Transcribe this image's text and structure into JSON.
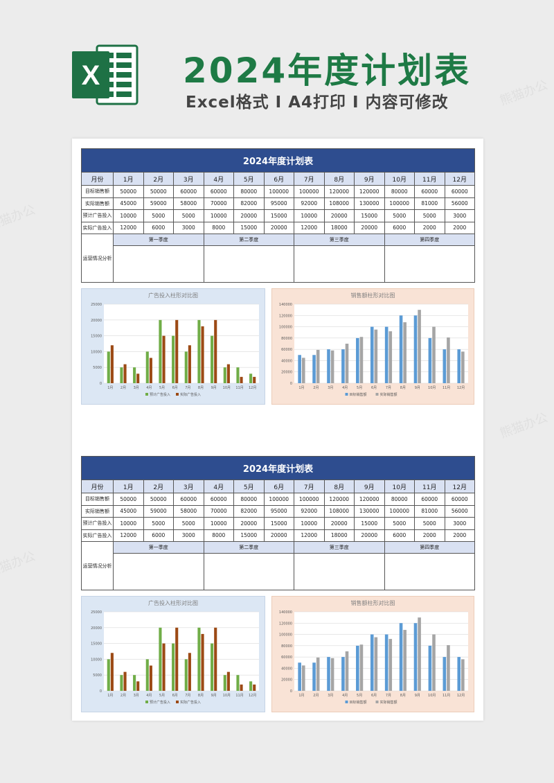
{
  "hero": {
    "title": "2024年度计划表",
    "subtitle": "Excel格式 I A4打印 I 内容可修改",
    "logo_letter": "X"
  },
  "colors": {
    "title_green": "#1e7a45",
    "header_blue": "#2e4d8f",
    "month_row_bg": "#d9e1f2",
    "excel_green": "#1e7145",
    "ad_expected": "#70ad47",
    "ad_actual": "#9c4a15",
    "sales_target": "#5b9bd5",
    "sales_actual": "#a5a5a5"
  },
  "table": {
    "title": "2024年度计划表",
    "corner_label": "月份",
    "months": [
      "1月",
      "2月",
      "3月",
      "4月",
      "5月",
      "6月",
      "7月",
      "8月",
      "9月",
      "10月",
      "11月",
      "12月"
    ],
    "rows": [
      {
        "label": "目标销售额",
        "values": [
          "50000",
          "50000",
          "60000",
          "60000",
          "80000",
          "100000",
          "100000",
          "120000",
          "120000",
          "80000",
          "60000",
          "60000"
        ]
      },
      {
        "label": "实际销售额",
        "values": [
          "45000",
          "59000",
          "58000",
          "70000",
          "82000",
          "95000",
          "92000",
          "108000",
          "130000",
          "100000",
          "81000",
          "56000"
        ]
      },
      {
        "label": "预计广告投入",
        "values": [
          "10000",
          "5000",
          "5000",
          "10000",
          "20000",
          "15000",
          "10000",
          "20000",
          "15000",
          "5000",
          "5000",
          "3000"
        ]
      },
      {
        "label": "实际广告投入",
        "values": [
          "12000",
          "6000",
          "3000",
          "8000",
          "15000",
          "20000",
          "12000",
          "18000",
          "20000",
          "6000",
          "2000",
          "2000"
        ]
      }
    ],
    "analysis_label": "运营情况分析",
    "quarters": [
      "第一季度",
      "第二季度",
      "第三季度",
      "第四季度"
    ]
  },
  "chart_data": [
    {
      "type": "bar",
      "title": "广告投入柱形对比图",
      "categories": [
        "1月",
        "2月",
        "3月",
        "4月",
        "5月",
        "6月",
        "7月",
        "8月",
        "9月",
        "10月",
        "11月",
        "12月"
      ],
      "series": [
        {
          "name": "预计广告投入",
          "values": [
            10000,
            5000,
            5000,
            10000,
            20000,
            15000,
            10000,
            20000,
            15000,
            5000,
            5000,
            3000
          ]
        },
        {
          "name": "实际广告投入",
          "values": [
            12000,
            6000,
            3000,
            8000,
            15000,
            20000,
            12000,
            18000,
            20000,
            6000,
            2000,
            2000
          ]
        }
      ],
      "ylim": [
        0,
        25000
      ],
      "yticks": [
        "0",
        "5000",
        "10000",
        "15000",
        "20000",
        "25000"
      ],
      "grid": true,
      "legend": "bottom"
    },
    {
      "type": "bar",
      "title": "销售额柱形对比图",
      "categories": [
        "1月",
        "2月",
        "3月",
        "4月",
        "5月",
        "6月",
        "7月",
        "8月",
        "9月",
        "10月",
        "11月",
        "12月"
      ],
      "series": [
        {
          "name": "目标销售额",
          "values": [
            50000,
            50000,
            60000,
            60000,
            80000,
            100000,
            100000,
            120000,
            120000,
            80000,
            60000,
            60000
          ]
        },
        {
          "name": "实际销售额",
          "values": [
            45000,
            59000,
            58000,
            70000,
            82000,
            95000,
            92000,
            108000,
            130000,
            100000,
            81000,
            56000
          ]
        }
      ],
      "ylim": [
        0,
        140000
      ],
      "yticks": [
        "0",
        "20000",
        "40000",
        "60000",
        "80000",
        "100000",
        "120000",
        "140000"
      ],
      "grid": true,
      "legend": "bottom"
    }
  ]
}
